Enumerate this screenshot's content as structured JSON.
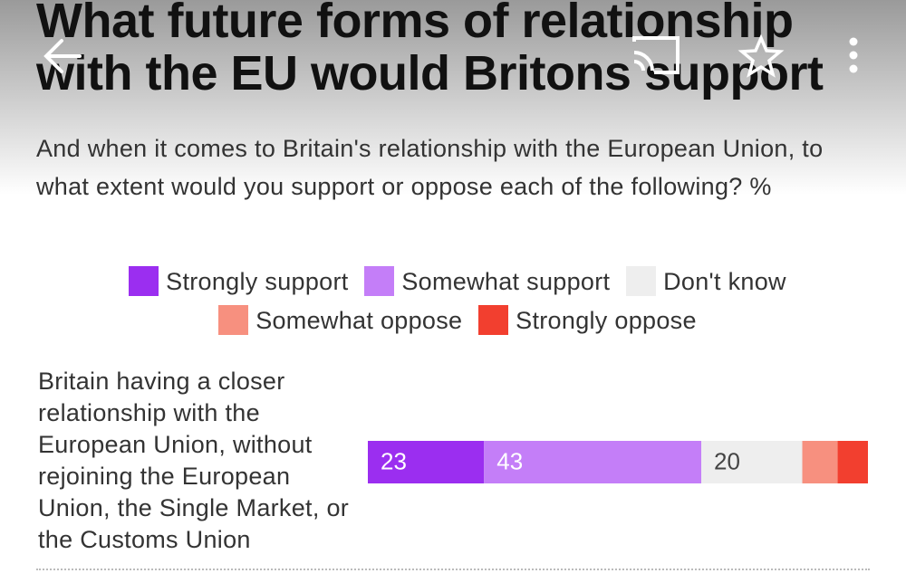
{
  "chart_data": {
    "type": "stacked-bar",
    "title": "What future forms of relationship with the EU would Britons support",
    "subtitle": "And when it comes to Britain's relationship with the European Union, to what extent would you support or oppose each of the following? %",
    "categories": [
      "Britain having a closer relationship with the European Union, without rejoining the European Union, the Single Market, or the Customs Union"
    ],
    "series": [
      {
        "name": "Strongly support",
        "color": "#9b2ef0",
        "values": [
          23
        ]
      },
      {
        "name": "Somewhat support",
        "color": "#c47ef8",
        "values": [
          43
        ]
      },
      {
        "name": "Don't know",
        "color": "#eeeeee",
        "values": [
          20
        ]
      },
      {
        "name": "Somewhat oppose",
        "color": "#f7907f",
        "values": [
          7
        ]
      },
      {
        "name": "Strongly oppose",
        "color": "#f23f2f",
        "values": [
          6
        ]
      }
    ]
  }
}
